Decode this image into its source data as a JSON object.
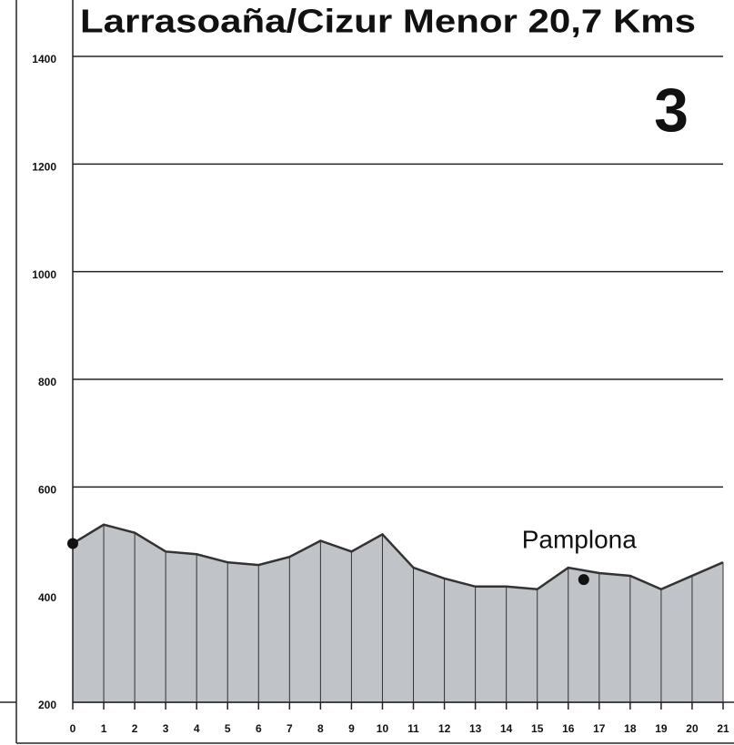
{
  "chart_data": {
    "type": "area",
    "title": "Larrasoaña/Cizur Menor 20,7 Kms",
    "badge": "3",
    "x": [
      0,
      1,
      2,
      3,
      4,
      5,
      6,
      7,
      8,
      9,
      10,
      11,
      12,
      13,
      14,
      15,
      16,
      17,
      18,
      19,
      20,
      21
    ],
    "values": [
      495,
      530,
      515,
      480,
      475,
      460,
      455,
      470,
      500,
      480,
      512,
      450,
      430,
      415,
      415,
      410,
      450,
      440,
      435,
      410,
      435,
      460
    ],
    "color": "#c0c4c8",
    "line_color": "#333333",
    "xlim": [
      0,
      21
    ],
    "xticks": [
      0,
      1,
      2,
      3,
      4,
      5,
      6,
      7,
      8,
      9,
      10,
      11,
      12,
      13,
      14,
      15,
      16,
      17,
      18,
      19,
      20,
      21
    ],
    "ylim": [
      200,
      1400
    ],
    "yticks": [
      200,
      400,
      600,
      800,
      1000,
      1200,
      1400
    ],
    "grid": true,
    "markers": [
      {
        "x": 0,
        "y": 495
      },
      {
        "x": 16.5,
        "y": 428
      }
    ],
    "annotations": [
      {
        "text": "Pamplona",
        "x": 16.5,
        "y": 428
      }
    ]
  }
}
